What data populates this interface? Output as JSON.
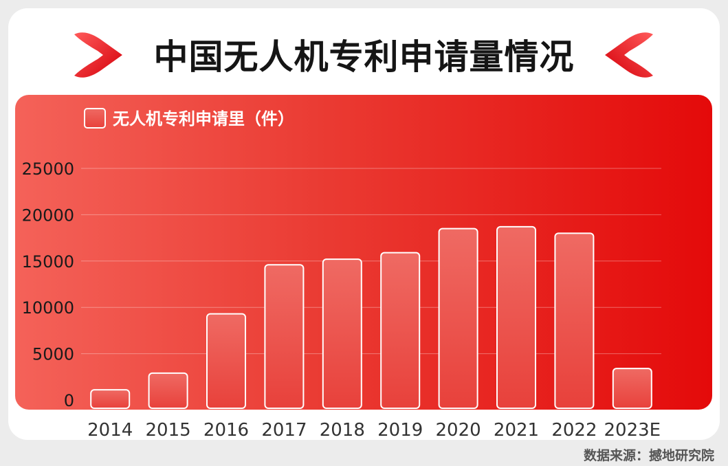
{
  "title": "中国无人机专利申请量情况",
  "source": "数据来源：撼地研究院",
  "colors": {
    "accent": "#e40a0a",
    "panel_light": "#f46259",
    "bar_fill": "#ea4d47",
    "bar_stroke": "#ffffff",
    "deco_red": "#e8141c"
  },
  "chart_data": {
    "type": "bar",
    "categories": [
      "2014",
      "2015",
      "2016",
      "2017",
      "2018",
      "2019",
      "2020",
      "2021",
      "2022",
      "2023E"
    ],
    "series": [
      {
        "name": "无人机专利申请里（件）",
        "values": [
          1100,
          2900,
          9300,
          14600,
          15200,
          15900,
          18500,
          18700,
          18000,
          3400
        ]
      }
    ],
    "yticks": [
      0,
      5000,
      10000,
      15000,
      20000,
      25000
    ],
    "ylim": [
      0,
      25000
    ],
    "grid": true,
    "legend_position": "top-left"
  }
}
